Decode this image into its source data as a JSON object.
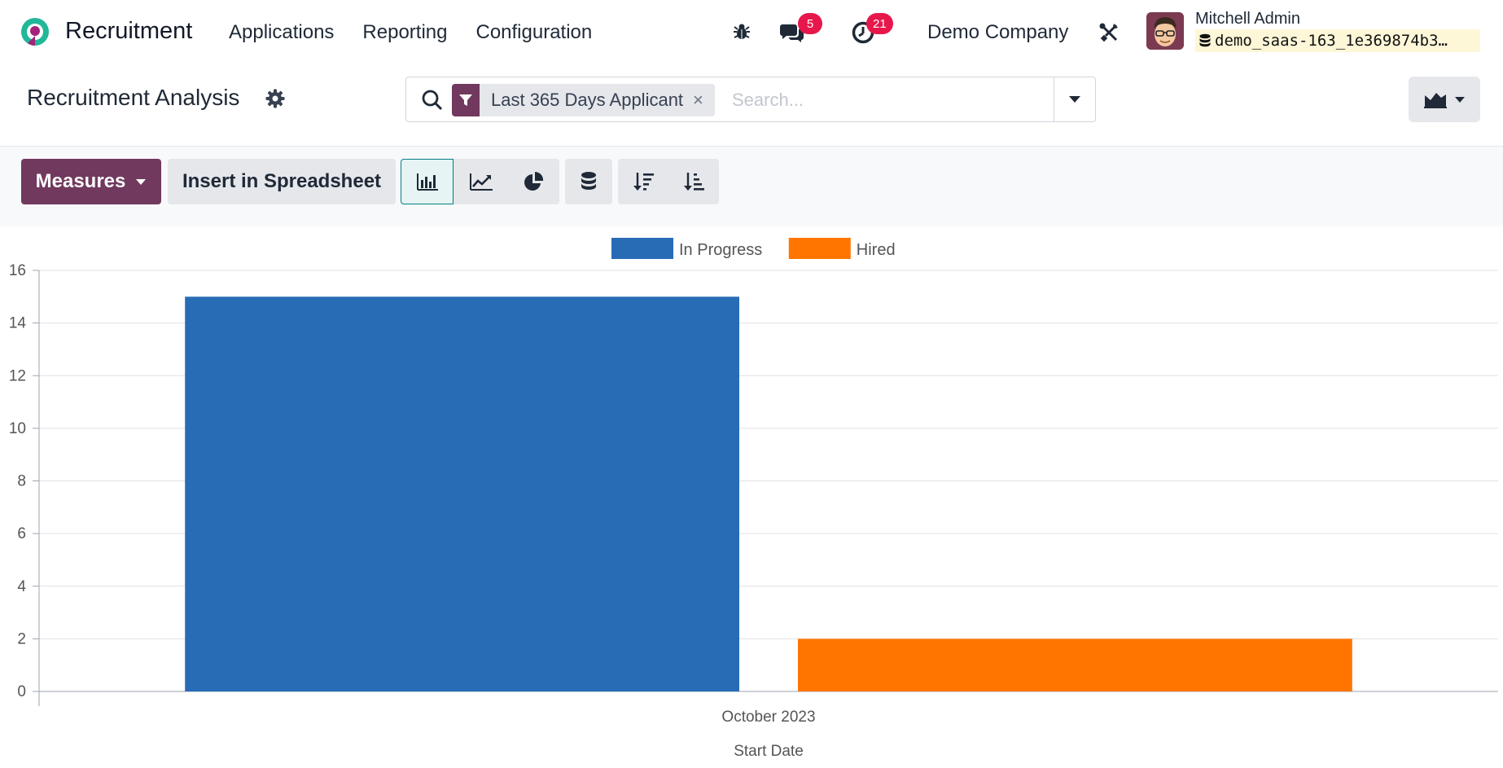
{
  "navbar": {
    "app_name": "Recruitment",
    "menu": [
      "Applications",
      "Reporting",
      "Configuration"
    ],
    "messages_count": "5",
    "activities_count": "21",
    "company": "Demo Company",
    "user_name": "Mitchell Admin",
    "database": "demo_saas-163_1e369874b3…"
  },
  "control_panel": {
    "breadcrumb": "Recruitment Analysis",
    "facet_label": "Last 365 Days Applicant",
    "facet_close": "×",
    "search_placeholder": "Search..."
  },
  "toolbar": {
    "measures_label": "Measures",
    "insert_label": "Insert in Spreadsheet",
    "icons": [
      "bar-chart-icon",
      "line-chart-icon",
      "pie-chart-icon",
      "stacked-icon",
      "sort-descending-icon",
      "sort-ascending-icon"
    ]
  },
  "colors": {
    "brand": "#71395e",
    "in_progress": "#286cb6",
    "hired": "#ff7500",
    "badge": "#e8174b"
  },
  "chart_data": {
    "type": "bar",
    "categories": [
      "October 2023"
    ],
    "series": [
      {
        "name": "In Progress",
        "values": [
          15
        ],
        "color": "#286cb6"
      },
      {
        "name": "Hired",
        "values": [
          2
        ],
        "color": "#ff7500"
      }
    ],
    "xlabel": "Start Date",
    "ylabel": "",
    "ylim": [
      0,
      16
    ],
    "yticks": [
      0,
      2,
      4,
      6,
      8,
      10,
      12,
      14,
      16
    ],
    "grid": true,
    "legend_position": "top-center"
  }
}
